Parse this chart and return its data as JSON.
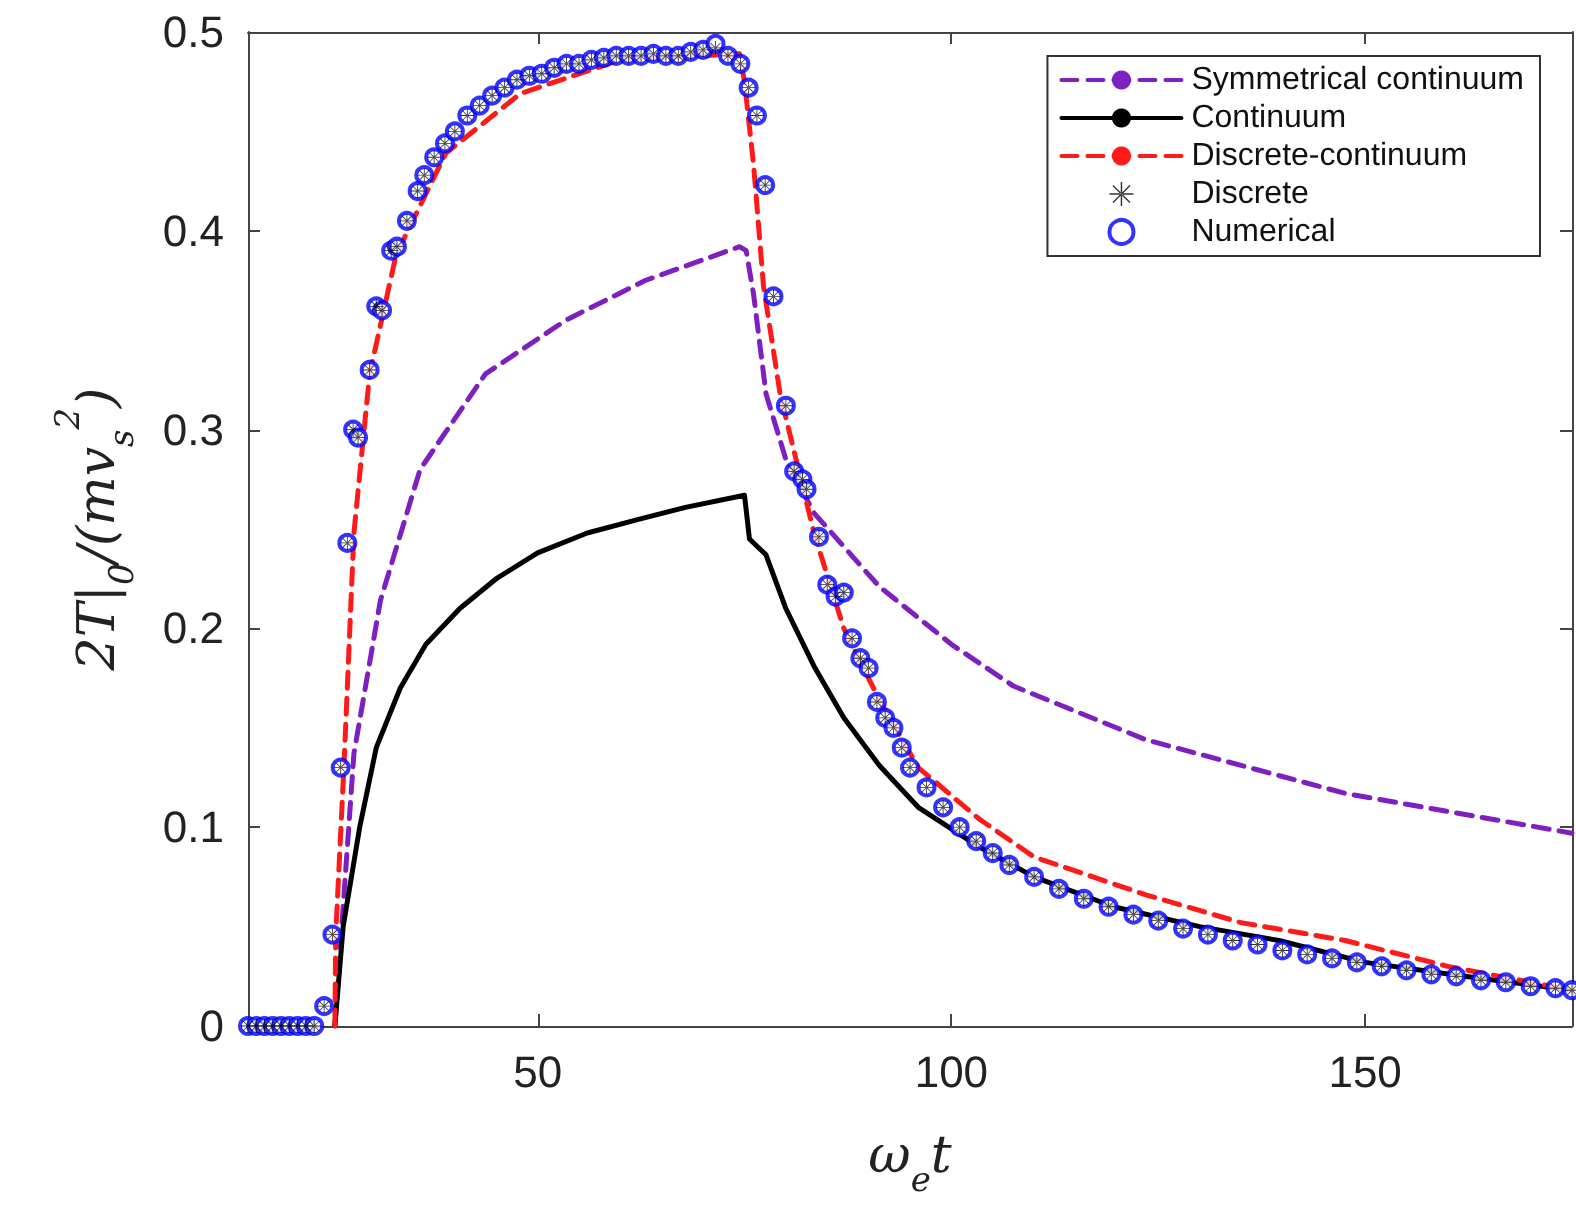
{
  "chart_data": {
    "type": "line",
    "xlabel": "ω$_{e}$t",
    "ylabel": "2T|$_{0}$/(mv$_{s}$$^{2}$)",
    "xlim": [
      15,
      175
    ],
    "xticks": [
      50,
      100,
      150
    ],
    "ylim": [
      0,
      0.5
    ],
    "yticks": [
      0,
      0.1,
      0.2,
      0.3,
      0.4,
      0.5
    ],
    "grid": false,
    "legend": "top right",
    "series": [
      {
        "name": "Symmetrical continuum",
        "color": "#7e1fbf",
        "line_style": "dashed",
        "marker": "none",
        "x": [
          25.5,
          26.5,
          27.8,
          31,
          35.8,
          43.7,
          53.4,
          63,
          74.4,
          75.2,
          76.1,
          77.6,
          80,
          83.4,
          91.3,
          100,
          107.5,
          123.5,
          147.6,
          175
        ],
        "values": [
          0,
          0.06,
          0.137,
          0.214,
          0.28,
          0.328,
          0.355,
          0.375,
          0.392,
          0.39,
          0.368,
          0.318,
          0.285,
          0.258,
          0.221,
          0.192,
          0.171,
          0.144,
          0.117,
          0.097
        ]
      },
      {
        "name": "Continuum",
        "color": "#000000",
        "line_style": "solid",
        "marker": "none",
        "x": [
          25.5,
          26.5,
          28.5,
          30.5,
          33.4,
          36.5,
          40.6,
          45,
          50,
          56,
          62.3,
          68,
          75,
          75.6,
          77.6,
          80,
          83.4,
          87,
          91.3,
          96,
          103.4,
          110,
          119.6,
          130,
          139.6,
          150,
          162,
          175
        ],
        "values": [
          0,
          0.05,
          0.1,
          0.14,
          0.17,
          0.192,
          0.21,
          0.225,
          0.238,
          0.248,
          0.255,
          0.261,
          0.267,
          0.245,
          0.237,
          0.21,
          0.181,
          0.155,
          0.131,
          0.11,
          0.09,
          0.075,
          0.06,
          0.05,
          0.043,
          0.032,
          0.025,
          0.018
        ]
      },
      {
        "name": "Discrete-continuum",
        "color": "#ff1a1a",
        "line_style": "dashed",
        "marker": "none",
        "x": [
          25.5,
          25.6,
          26.6,
          27.8,
          29.7,
          32.9,
          38.9,
          47.9,
          60,
          74.4,
          75,
          76.1,
          77.3,
          79.3,
          83.4,
          87,
          91.3,
          96,
          103.4,
          110,
          123.5,
          135,
          147.6,
          160,
          175
        ],
        "values": [
          0,
          0.046,
          0.131,
          0.248,
          0.328,
          0.388,
          0.439,
          0.469,
          0.486,
          0.489,
          0.475,
          0.433,
          0.372,
          0.318,
          0.248,
          0.2,
          0.164,
          0.13,
          0.104,
          0.085,
          0.066,
          0.052,
          0.043,
          0.03,
          0.018
        ]
      },
      {
        "name": "Discrete",
        "type": "scatter",
        "color": "#000000",
        "marker": "cross",
        "x": [
          15,
          16,
          17,
          18,
          19,
          20,
          21,
          22,
          23,
          24.2,
          25.2,
          26.2,
          27,
          27.7,
          28.3,
          29.7,
          30.5,
          31.2,
          32.3,
          33,
          34.2,
          35.5,
          36.3,
          37.5,
          38.8,
          40,
          41.5,
          43,
          44.5,
          46,
          47.5,
          49,
          50.5,
          52,
          53.5,
          55,
          56.5,
          58,
          59.5,
          61,
          62.5,
          64,
          65.5,
          67,
          68.5,
          70,
          71.5,
          73,
          74.5,
          75.5,
          76.5,
          77.5,
          78.5,
          80,
          81,
          82,
          82.5,
          84,
          85,
          86,
          87,
          88,
          89,
          90,
          91,
          92,
          93,
          94,
          95,
          97,
          99,
          101,
          103,
          105,
          107,
          110,
          113,
          116,
          119,
          122,
          125,
          128,
          131,
          134,
          137,
          140,
          143,
          146,
          149,
          152,
          155,
          158,
          161,
          164,
          167,
          170,
          173,
          175
        ],
        "values": [
          0,
          0,
          0,
          0,
          0,
          0,
          0,
          0,
          0,
          0.01,
          0.046,
          0.13,
          0.243,
          0.3,
          0.296,
          0.33,
          0.362,
          0.36,
          0.39,
          0.392,
          0.405,
          0.42,
          0.428,
          0.437,
          0.444,
          0.45,
          0.458,
          0.463,
          0.468,
          0.472,
          0.476,
          0.478,
          0.479,
          0.482,
          0.484,
          0.484,
          0.486,
          0.487,
          0.488,
          0.488,
          0.488,
          0.489,
          0.488,
          0.488,
          0.49,
          0.491,
          0.492,
          0.488,
          0.484,
          0.472,
          0.458,
          0.423,
          0.367,
          0.312,
          0.279,
          0.275,
          0.27,
          0.246,
          0.222,
          0.216,
          0.218,
          0.195,
          0.185,
          0.18,
          0.163,
          0.155,
          0.15,
          0.14,
          0.13,
          0.12,
          0.11,
          0.1,
          0.093,
          0.087,
          0.081,
          0.075,
          0.069,
          0.064,
          0.06,
          0.056,
          0.053,
          0.049,
          0.046,
          0.043,
          0.041,
          0.038,
          0.036,
          0.034,
          0.032,
          0.03,
          0.028,
          0.026,
          0.025,
          0.023,
          0.022,
          0.02,
          0.019,
          0.018
        ]
      },
      {
        "name": "Numerical",
        "type": "scatter",
        "color": "#0000ff",
        "marker": "circle",
        "x": [
          15,
          16,
          17,
          18,
          19,
          20,
          21,
          22,
          23,
          24.2,
          25.2,
          26.2,
          27,
          27.7,
          28.3,
          29.7,
          30.5,
          31.2,
          32.3,
          33,
          34.2,
          35.5,
          36.3,
          37.5,
          38.8,
          40,
          41.5,
          43,
          44.5,
          46,
          47.5,
          49,
          50.5,
          52,
          53.5,
          55,
          56.5,
          58,
          59.5,
          61,
          62.5,
          64,
          65.5,
          67,
          68.5,
          70,
          71.5,
          73,
          74.5,
          75.5,
          76.5,
          77.5,
          78.5,
          80,
          81,
          82,
          82.5,
          84,
          85,
          86,
          87,
          88,
          89,
          90,
          91,
          92,
          93,
          94,
          95,
          97,
          99,
          101,
          103,
          105,
          107,
          110,
          113,
          116,
          119,
          122,
          125,
          128,
          131,
          134,
          137,
          140,
          143,
          146,
          149,
          152,
          155,
          158,
          161,
          164,
          167,
          170,
          173,
          175
        ],
        "values": [
          0,
          0,
          0,
          0,
          0,
          0,
          0,
          0,
          0,
          0.01,
          0.046,
          0.13,
          0.243,
          0.3,
          0.296,
          0.33,
          0.362,
          0.36,
          0.39,
          0.392,
          0.405,
          0.42,
          0.428,
          0.437,
          0.444,
          0.45,
          0.458,
          0.463,
          0.468,
          0.472,
          0.476,
          0.478,
          0.479,
          0.482,
          0.484,
          0.484,
          0.486,
          0.487,
          0.488,
          0.488,
          0.488,
          0.489,
          0.488,
          0.488,
          0.49,
          0.491,
          0.494,
          0.488,
          0.484,
          0.472,
          0.458,
          0.423,
          0.367,
          0.312,
          0.279,
          0.275,
          0.27,
          0.246,
          0.222,
          0.216,
          0.218,
          0.195,
          0.185,
          0.18,
          0.163,
          0.155,
          0.15,
          0.14,
          0.13,
          0.12,
          0.11,
          0.1,
          0.093,
          0.087,
          0.081,
          0.075,
          0.069,
          0.064,
          0.06,
          0.056,
          0.053,
          0.049,
          0.046,
          0.043,
          0.041,
          0.038,
          0.036,
          0.034,
          0.032,
          0.03,
          0.028,
          0.026,
          0.025,
          0.023,
          0.022,
          0.02,
          0.019,
          0.018
        ]
      }
    ]
  }
}
